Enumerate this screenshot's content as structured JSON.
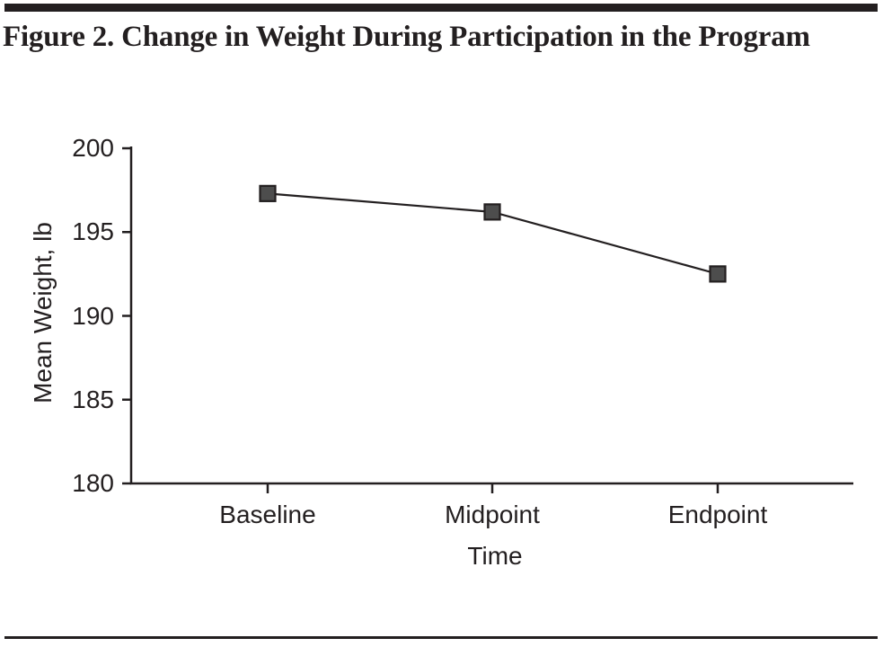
{
  "figure": {
    "title": "Figure 2. Change in Weight During Participation in the Program"
  },
  "chart_data": {
    "type": "line",
    "title": "Figure 2. Change in Weight During Participation in the Program",
    "categories": [
      "Baseline",
      "Midpoint",
      "Endpoint"
    ],
    "series": [
      {
        "name": "Mean Weight",
        "values": [
          197.3,
          196.2,
          192.5
        ]
      }
    ],
    "xlabel": "Time",
    "ylabel": "Mean Weight, lb",
    "ylim": [
      180,
      200
    ],
    "yticks": [
      200,
      195,
      190,
      185,
      180
    ],
    "grid": false,
    "legend": "none",
    "marker": "square",
    "colors": {
      "axis": "#231f20",
      "line": "#231f20",
      "marker_fill": "#4d4d4d",
      "marker_stroke": "#231f20",
      "text": "#231f20"
    }
  }
}
